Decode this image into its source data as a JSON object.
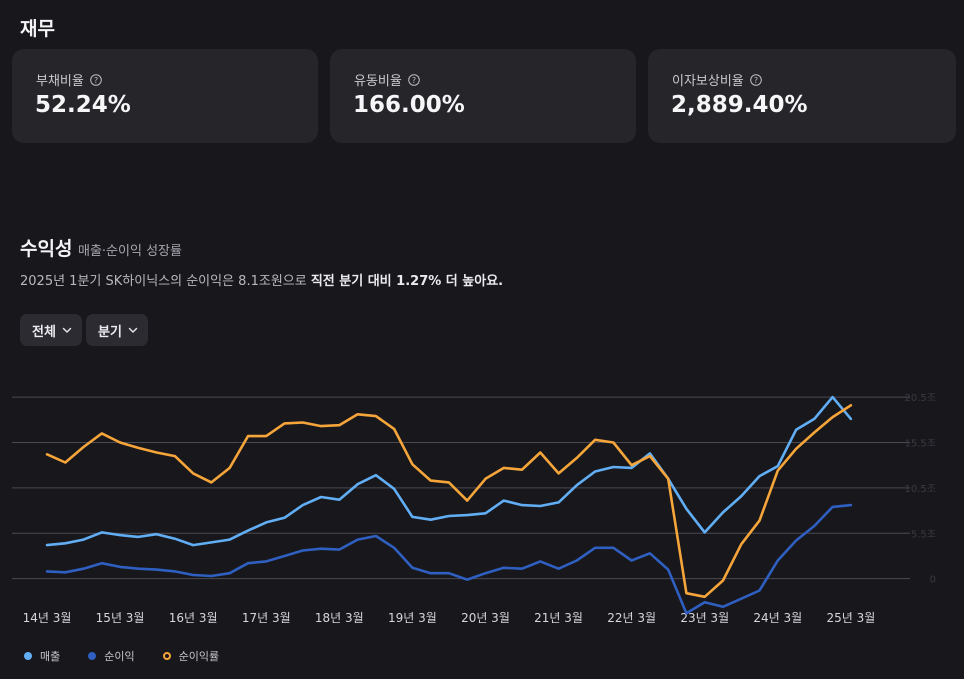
{
  "finance": {
    "title": "재무",
    "cards": [
      {
        "label": "부채비율",
        "value": "52.24%"
      },
      {
        "label": "유동비율",
        "value": "166.00%"
      },
      {
        "label": "이자보상비율",
        "value": "2,889.40%"
      }
    ]
  },
  "profitability": {
    "title": "수익성",
    "subtitle": "매출·순이익 성장률",
    "desc_prefix": "2025년 1분기 SK하이닉스의 순이익은 8.1조원으로 ",
    "desc_bold": "직전 분기 대비 1.27% 더 높아요.",
    "filters": [
      {
        "label": "전체"
      },
      {
        "label": "분기"
      }
    ]
  },
  "colors": {
    "revenue": "#62aef5",
    "net_income": "#2f5fc0",
    "net_margin": "#f5a53a",
    "grid": "#4a4a52"
  },
  "chart_data": {
    "type": "line",
    "title": "매출·순이익 성장률",
    "x_tick_labels": [
      "14년 3월",
      "15년 3월",
      "16년 3월",
      "17년 3월",
      "18년 3월",
      "19년 3월",
      "20년 3월",
      "21년 3월",
      "22년 3월",
      "23년 3월",
      "24년 3월",
      "25년 3월"
    ],
    "y_tick_labels": [
      "20.5조",
      "15.5조",
      "10.5조",
      "5.5조",
      "0"
    ],
    "ylim": [
      -4,
      21
    ],
    "quarters": 45,
    "series": [
      {
        "name": "매출",
        "color_key": "revenue",
        "values": [
          3.7,
          3.9,
          4.3,
          5.1,
          4.8,
          4.6,
          4.9,
          4.4,
          3.7,
          4.0,
          4.3,
          5.3,
          6.2,
          6.7,
          8.1,
          9.0,
          8.7,
          10.4,
          11.4,
          9.9,
          6.8,
          6.5,
          6.9,
          7.0,
          7.2,
          8.6,
          8.1,
          8.0,
          8.4,
          10.3,
          11.8,
          12.3,
          12.2,
          13.8,
          11.0,
          7.7,
          5.1,
          7.3,
          9.1,
          11.3,
          12.4,
          16.4,
          17.6,
          20.0,
          17.6
        ]
      },
      {
        "name": "순이익",
        "color_key": "net_income",
        "values": [
          0.8,
          0.7,
          1.1,
          1.7,
          1.3,
          1.1,
          1.0,
          0.8,
          0.4,
          0.3,
          0.6,
          1.7,
          1.9,
          2.5,
          3.1,
          3.3,
          3.2,
          4.3,
          4.7,
          3.4,
          1.2,
          0.6,
          0.6,
          -0.1,
          0.6,
          1.2,
          1.1,
          1.9,
          1.1,
          2.0,
          3.4,
          3.4,
          2.0,
          2.8,
          1.0,
          -3.8,
          -2.6,
          -3.1,
          -2.2,
          -1.3,
          2.0,
          4.2,
          5.8,
          7.9,
          8.1
        ]
      },
      {
        "name": "순이익률",
        "color_key": "net_margin",
        "values": [
          13.7,
          12.8,
          14.5,
          16.0,
          15.0,
          14.4,
          13.9,
          13.5,
          11.6,
          10.6,
          12.2,
          15.7,
          15.7,
          17.1,
          17.2,
          16.8,
          16.9,
          18.1,
          17.9,
          16.5,
          12.6,
          10.8,
          10.6,
          8.6,
          11.0,
          12.2,
          12.0,
          13.9,
          11.6,
          13.3,
          15.3,
          15.0,
          12.5,
          13.5,
          11.0,
          -1.6,
          -2.0,
          -0.2,
          3.8,
          6.4,
          11.9,
          14.3,
          16.1,
          17.8,
          19.1
        ]
      }
    ],
    "legend": [
      "매출",
      "순이익",
      "순이익률"
    ],
    "legend_position": "bottom-left"
  }
}
